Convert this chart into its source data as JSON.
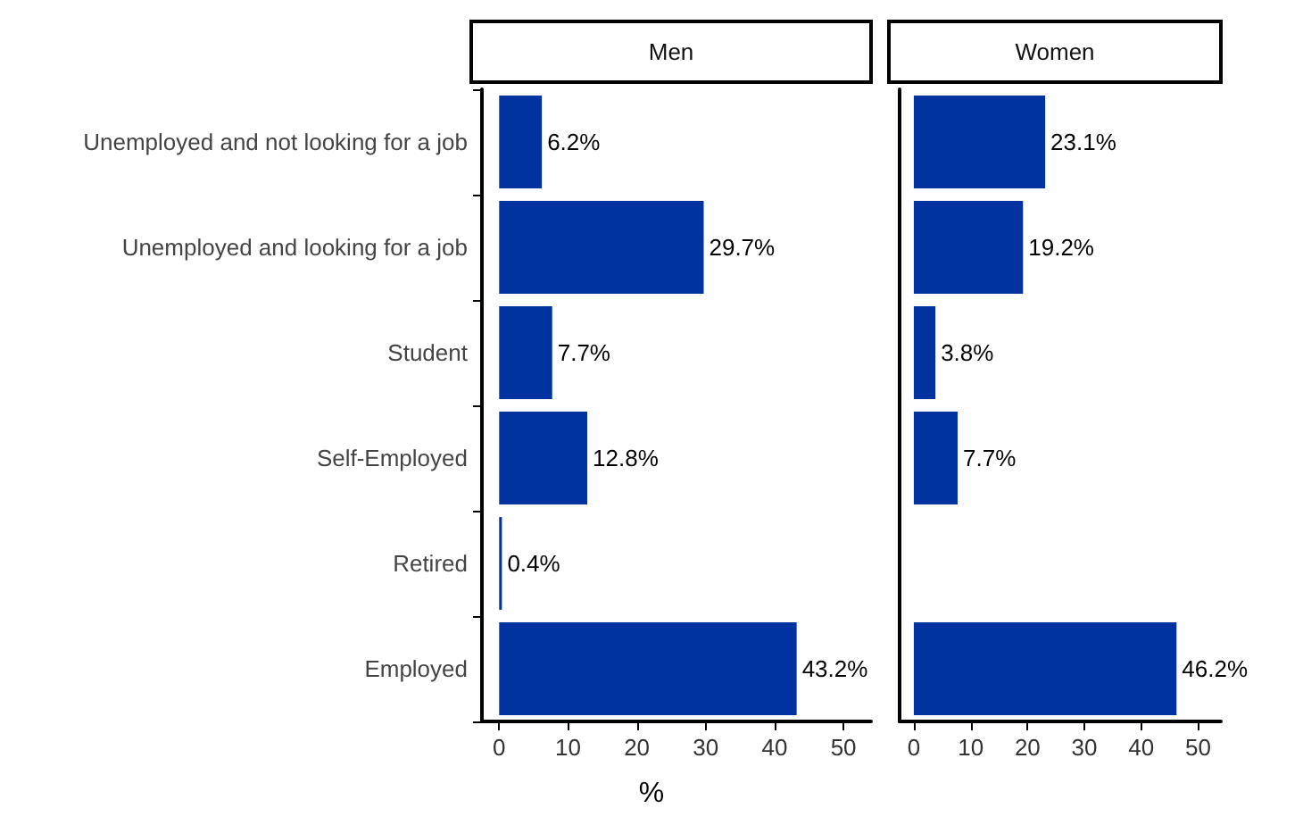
{
  "chart_data": [
    {
      "type": "bar",
      "orientation": "horizontal",
      "title": "Men",
      "xlabel": "%",
      "categories": [
        "Unemployed and not looking for a job",
        "Unemployed and looking for a job",
        "Student",
        "Self-Employed",
        "Retired",
        "Employed"
      ],
      "values": [
        6.2,
        29.7,
        7.7,
        12.8,
        0.4,
        43.2
      ],
      "value_labels": [
        "6.2%",
        "29.7%",
        "7.7%",
        "12.8%",
        "0.4%",
        "43.2%"
      ],
      "color": "#0033a0",
      "xlim": [
        -2.5,
        54
      ],
      "xticks": [
        0,
        10,
        20,
        30,
        40,
        50
      ],
      "grid": false
    },
    {
      "type": "bar",
      "orientation": "horizontal",
      "title": "Women",
      "categories": [
        null,
        null,
        null,
        null,
        null,
        null
      ],
      "values": [
        23.1,
        19.2,
        3.8,
        7.7,
        null,
        46.2
      ],
      "value_labels": [
        "23.1%",
        "19.2%",
        "3.8%",
        "7.7%",
        null,
        "46.2%"
      ],
      "color": "#0033a0",
      "xlim": [
        -2.5,
        54
      ],
      "xticks": [
        0,
        10,
        20,
        30,
        40,
        50
      ],
      "grid": false,
      "tick_labels": "x"
    }
  ]
}
